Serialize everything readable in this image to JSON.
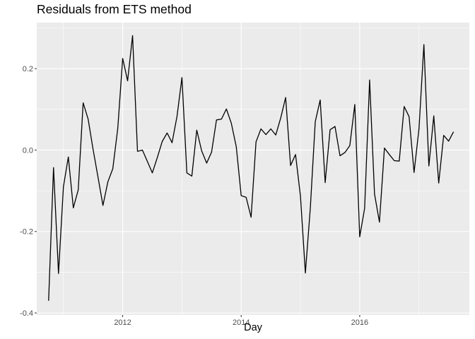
{
  "chart_data": {
    "type": "line",
    "title": "Residuals from ETS method",
    "xlabel": "Day",
    "ylabel": "",
    "xlim": [
      2010.55,
      2017.85
    ],
    "ylim": [
      -0.405,
      0.313
    ],
    "xticks": [
      2012,
      2014,
      2016
    ],
    "xtick_labels": [
      "2012",
      "2014",
      "2016"
    ],
    "xminor": [
      2011,
      2013,
      2015,
      2017
    ],
    "yticks": [
      -0.4,
      -0.2,
      0.0,
      0.2
    ],
    "ytick_labels": [
      "-0.4",
      "-0.2",
      "0.0",
      "0.2"
    ],
    "yminor": [
      -0.3,
      -0.1,
      0.1,
      0.3
    ],
    "grid": true,
    "legend": "none",
    "colors": {
      "line": "#000000",
      "panel": "#ebebeb",
      "grid": "#ffffff"
    },
    "series": [
      {
        "x": [
          2010.75,
          2010.833,
          2010.917,
          2011.0,
          2011.083,
          2011.167,
          2011.25,
          2011.333,
          2011.417,
          2011.5,
          2011.583,
          2011.667,
          2011.75,
          2011.833,
          2011.917,
          2012.0,
          2012.083,
          2012.167,
          2012.25,
          2012.333,
          2012.417,
          2012.5,
          2012.583,
          2012.667,
          2012.75,
          2012.833,
          2012.917,
          2013.0,
          2013.083,
          2013.167,
          2013.25,
          2013.333,
          2013.417,
          2013.5,
          2013.583,
          2013.667,
          2013.75,
          2013.833,
          2013.917,
          2014.0,
          2014.083,
          2014.167,
          2014.25,
          2014.333,
          2014.417,
          2014.5,
          2014.583,
          2014.667,
          2014.75,
          2014.833,
          2014.917,
          2015.0,
          2015.083,
          2015.167,
          2015.25,
          2015.333,
          2015.417,
          2015.5,
          2015.583,
          2015.667,
          2015.75,
          2015.833,
          2015.917,
          2016.0,
          2016.083,
          2016.167,
          2016.25,
          2016.333,
          2016.417,
          2016.5,
          2016.583,
          2016.667,
          2016.75,
          2016.833,
          2016.917,
          2017.0,
          2017.083,
          2017.167,
          2017.25,
          2017.333,
          2017.417,
          2017.5,
          2017.583
        ],
        "values": [
          -0.37,
          -0.043,
          -0.303,
          -0.09,
          -0.017,
          -0.142,
          -0.098,
          0.116,
          0.076,
          0.002,
          -0.066,
          -0.136,
          -0.078,
          -0.046,
          0.053,
          0.225,
          0.17,
          0.281,
          -0.003,
          0.0,
          -0.028,
          -0.056,
          -0.019,
          0.021,
          0.042,
          0.018,
          0.083,
          0.178,
          -0.056,
          -0.064,
          0.049,
          -0.002,
          -0.032,
          -0.005,
          0.074,
          0.076,
          0.101,
          0.066,
          0.008,
          -0.112,
          -0.116,
          -0.165,
          0.02,
          0.052,
          0.038,
          0.052,
          0.037,
          0.079,
          0.129,
          -0.038,
          -0.011,
          -0.113,
          -0.302,
          -0.141,
          0.07,
          0.123,
          -0.08,
          0.05,
          0.058,
          -0.014,
          -0.006,
          0.011,
          0.112,
          -0.213,
          -0.143,
          0.172,
          -0.108,
          -0.177,
          0.005,
          -0.011,
          -0.026,
          -0.027,
          0.107,
          0.082,
          -0.055,
          0.052,
          0.259,
          -0.039,
          0.084,
          -0.081,
          0.036,
          0.022,
          0.045
        ]
      }
    ]
  }
}
